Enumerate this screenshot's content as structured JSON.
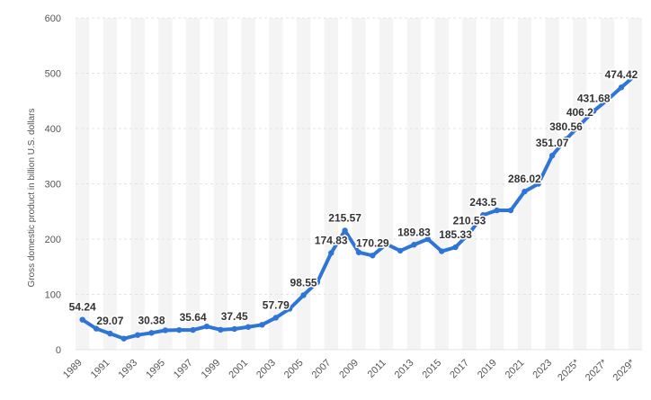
{
  "chart_data": {
    "type": "line",
    "title": "",
    "xlabel": "",
    "ylabel": "Gross domestic product in billion U.S. dollars",
    "ylim": [
      0,
      600
    ],
    "yticks": [
      0,
      100,
      200,
      300,
      400,
      500,
      600
    ],
    "grid": true,
    "legend": "none",
    "line_color": "#2f75d6",
    "band_color": "#f4f4f4",
    "grid_color": "#e4e4e4",
    "x": [
      "1989",
      "1990",
      "1991",
      "1992",
      "1993",
      "1994",
      "1995",
      "1996",
      "1997",
      "1998",
      "1999",
      "2000",
      "2001",
      "2002",
      "2003",
      "2004",
      "2005",
      "2006",
      "2007",
      "2008",
      "2009",
      "2010",
      "2011",
      "2012",
      "2013",
      "2014",
      "2015",
      "2016",
      "2017",
      "2018",
      "2019",
      "2020",
      "2021",
      "2022",
      "2023",
      "2024",
      "2025*",
      "2026*",
      "2027*",
      "2028*",
      "2029*"
    ],
    "xtick_labels": [
      "1989",
      "1991",
      "1993",
      "1995",
      "1997",
      "1999",
      "2001",
      "2003",
      "2005",
      "2007",
      "2009",
      "2011",
      "2013",
      "2015",
      "2017",
      "2019",
      "2021",
      "2023",
      "2025*",
      "2027*",
      "2029*"
    ],
    "series": [
      {
        "values": [
          54.24,
          38.0,
          29.07,
          20.0,
          26.5,
          30.38,
          35.0,
          35.5,
          35.64,
          42.0,
          36.0,
          37.45,
          41.0,
          45.0,
          57.79,
          74.0,
          98.55,
          122.0,
          174.83,
          215.57,
          176.0,
          170.29,
          191.0,
          179.0,
          189.83,
          200.0,
          178.0,
          185.33,
          210.53,
          243.5,
          252.0,
          252.0,
          286.02,
          300.0,
          351.07,
          380.56,
          406.2,
          431.68,
          452.0,
          474.42,
          496.0
        ],
        "labels": {
          "0": "54.24",
          "2": "29.07",
          "5": "30.38",
          "8": "35.64",
          "11": "37.45",
          "14": "57.79",
          "16": "98.55",
          "18": "174.83",
          "19": "215.57",
          "21": "170.29",
          "24": "189.83",
          "27": "185.33",
          "28": "210.53",
          "29": "243.5",
          "32": "286.02",
          "34": "351.07",
          "35": "380.56",
          "36": "406.2",
          "37": "431.68",
          "39": "474.42"
        }
      }
    ]
  }
}
